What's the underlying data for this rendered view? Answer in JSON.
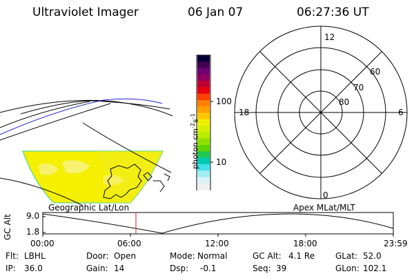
{
  "header": {
    "title": "Ultraviolet Imager",
    "date": "06 Jan 07",
    "time": "06:27:36 UT"
  },
  "colorbar": {
    "unit_prefix": "photon cm",
    "unit_exp1": "-2",
    "unit_mid": "s",
    "unit_exp2": "-1",
    "tick_high": "100",
    "tick_low": "10",
    "colors": [
      "#000033",
      "#400050",
      "#700070",
      "#900060",
      "#c00030",
      "#e80010",
      "#ff4000",
      "#ff8000",
      "#ffa000",
      "#ffc800",
      "#f0f000",
      "#d8f000",
      "#b8ec00",
      "#90e000",
      "#60d400",
      "#20c850",
      "#00c8b0",
      "#40e0e8",
      "#a0ecf4",
      "#d8f4f8",
      "#f0f0f0"
    ]
  },
  "geo_map": {
    "label": "Geographic Lat/Lon"
  },
  "polar": {
    "label": "Apex MLat/MLT",
    "mlt_top": "12",
    "mlt_left": "18",
    "mlt_right": "6",
    "mlt_bottom": "0",
    "lat_60": "60",
    "lat_70": "70",
    "lat_80": "80"
  },
  "altitude_plot": {
    "ylabel": "GC Alt",
    "ytick_high": "9.0",
    "ytick_low": "1.8",
    "xticks": [
      "00:00",
      "06:00",
      "12:00",
      "18:00",
      "23:59"
    ]
  },
  "info": {
    "flt_label": "Flt:",
    "flt_value": "LBHL",
    "ip_label": "IP:",
    "ip_value": "36.0",
    "door_label": "Door:",
    "door_value": "Open",
    "gain_label": "Gain:",
    "gain_value": "14",
    "mode_label": "Mode:",
    "mode_value": "Normal",
    "dsp_label": "Dsp:",
    "dsp_value": "-0.1",
    "gcalt_label": "GC Alt:",
    "gcalt_value": "4.1 Re",
    "seq_label": "Seq:",
    "seq_value": "39",
    "glat_label": "GLat:",
    "glat_value": "52.0",
    "glon_label": "GLon:",
    "glon_value": "102.1"
  }
}
